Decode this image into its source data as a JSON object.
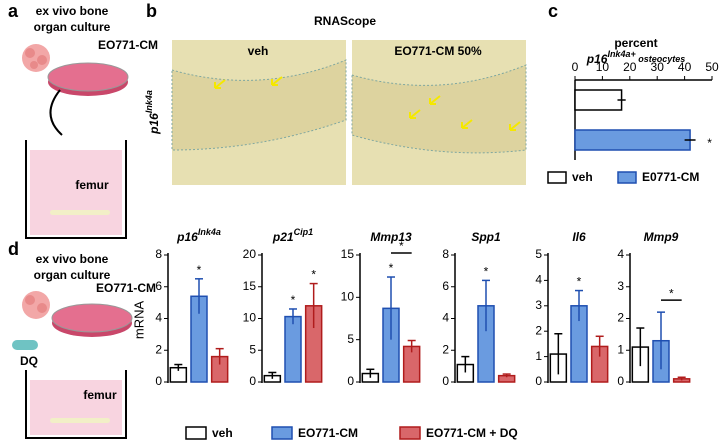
{
  "panels": {
    "a": {
      "letter": "a",
      "title": [
        "ex vivo bone",
        "organ culture"
      ],
      "cm_label": "EO771-CM",
      "femur": "femur"
    },
    "b": {
      "letter": "b",
      "title": "RNAScope",
      "ylabel": "p16",
      "ylabel_sup": "Ink4a",
      "images": [
        "veh",
        "EO771-CM 50%"
      ]
    },
    "c": {
      "letter": "c"
    },
    "d": {
      "letter": "d",
      "title": [
        "ex vivo bone",
        "organ culture"
      ],
      "cm_label": "EO771-CM",
      "dq": "DQ",
      "femur": "femur",
      "ylabel": "mRNA"
    }
  },
  "chart_data": [
    {
      "type": "hbar",
      "title": "percent",
      "subtitle": "p16",
      "subtitle_sup": "Ink4a+",
      "subtitle_rest": " osteocytes",
      "categories": [
        "veh",
        "E0771-CM"
      ],
      "values": [
        17,
        42
      ],
      "errors": [
        1.5,
        2
      ],
      "colors": [
        "#ffffff",
        "#6a9be0"
      ],
      "xlim": [
        0,
        50
      ],
      "xticks": [
        0,
        10,
        20,
        30,
        40,
        50
      ],
      "annotations": [
        {
          "text": "*",
          "category": "E0771-CM"
        }
      ]
    },
    {
      "type": "bar",
      "title": "p16",
      "title_sup": "Ink4a",
      "categories": [
        "veh",
        "EO771-CM",
        "EO771-CM + DQ"
      ],
      "values": [
        0.9,
        5.4,
        1.6
      ],
      "errors": [
        0.2,
        1.1,
        0.5
      ],
      "colors": [
        "#ffffff",
        "#6a9be0",
        "#d9676a"
      ],
      "ylim": [
        0,
        8
      ],
      "yticks": [
        0,
        2,
        4,
        6,
        8
      ],
      "annotations": [
        {
          "text": "*",
          "category": "EO771-CM"
        }
      ]
    },
    {
      "type": "bar",
      "title": "p21",
      "title_sup": "Cip1",
      "categories": [
        "veh",
        "EO771-CM",
        "EO771-CM + DQ"
      ],
      "values": [
        1,
        10.3,
        12
      ],
      "errors": [
        0.5,
        1.2,
        3.5
      ],
      "colors": [
        "#ffffff",
        "#6a9be0",
        "#d9676a"
      ],
      "ylim": [
        0,
        20
      ],
      "yticks": [
        0,
        5,
        10,
        15,
        20
      ],
      "annotations": [
        {
          "text": "*",
          "category": "EO771-CM"
        },
        {
          "text": "*",
          "category": "EO771-CM + DQ"
        }
      ]
    },
    {
      "type": "bar",
      "title": "Mmp13",
      "categories": [
        "veh",
        "EO771-CM",
        "EO771-CM + DQ"
      ],
      "values": [
        1,
        8.7,
        4.2
      ],
      "errors": [
        0.5,
        3.7,
        0.7
      ],
      "colors": [
        "#ffffff",
        "#6a9be0",
        "#d9676a"
      ],
      "ylim": [
        0,
        15
      ],
      "yticks": [
        0,
        5,
        10,
        15
      ],
      "annotations": [
        {
          "text": "*",
          "category": "EO771-CM"
        },
        {
          "text": "*",
          "between": [
            "EO771-CM",
            "EO771-CM + DQ"
          ]
        }
      ]
    },
    {
      "type": "bar",
      "title": "Spp1",
      "categories": [
        "veh",
        "EO771-CM",
        "EO771-CM + DQ"
      ],
      "values": [
        1.1,
        4.8,
        0.4
      ],
      "errors": [
        0.5,
        1.6,
        0.1
      ],
      "colors": [
        "#ffffff",
        "#6a9be0",
        "#d9676a"
      ],
      "ylim": [
        0,
        8
      ],
      "yticks": [
        0,
        2,
        4,
        6,
        8
      ],
      "annotations": [
        {
          "text": "*",
          "category": "EO771-CM"
        }
      ]
    },
    {
      "type": "bar",
      "title": "Il6",
      "categories": [
        "veh",
        "EO771-CM",
        "EO771-CM + DQ"
      ],
      "values": [
        1.1,
        3.0,
        1.4
      ],
      "errors": [
        0.8,
        0.6,
        0.4
      ],
      "colors": [
        "#ffffff",
        "#6a9be0",
        "#d9676a"
      ],
      "ylim": [
        0,
        5
      ],
      "yticks": [
        0,
        1,
        2,
        3,
        4,
        5
      ],
      "annotations": [
        {
          "text": "*",
          "category": "EO771-CM"
        }
      ]
    },
    {
      "type": "bar",
      "title": "Mmp9",
      "categories": [
        "veh",
        "EO771-CM",
        "EO771-CM + DQ"
      ],
      "values": [
        1.1,
        1.3,
        0.1
      ],
      "errors": [
        0.6,
        0.9,
        0.05
      ],
      "colors": [
        "#ffffff",
        "#6a9be0",
        "#d9676a"
      ],
      "ylim": [
        0,
        4
      ],
      "yticks": [
        0,
        1,
        2,
        3,
        4
      ],
      "annotations": [
        {
          "text": "*",
          "between": [
            "EO771-CM",
            "EO771-CM + DQ"
          ]
        }
      ]
    }
  ]
}
